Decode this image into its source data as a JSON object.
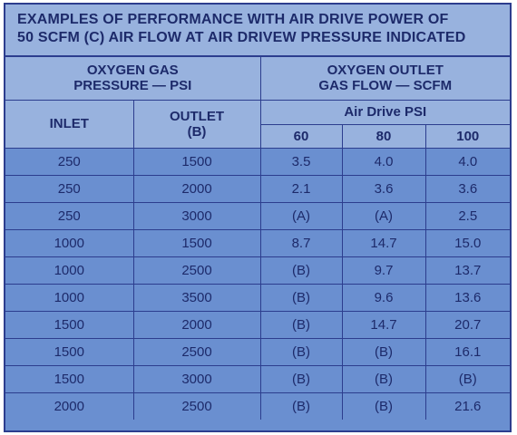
{
  "title": {
    "line1": "EXAMPLES OF PERFORMANCE WITH AIR DRIVE POWER OF",
    "line2": "50 SCFM (C) AIR FLOW AT AIR DRIVEW PRESSURE INDICATED"
  },
  "headers": {
    "pressure_group_line1": "OXYGEN GAS",
    "pressure_group_line2": "PRESSURE — PSI",
    "flow_group_line1": "OXYGEN OUTLET",
    "flow_group_line2": "GAS FLOW — SCFM",
    "inlet": "INLET",
    "outlet_line1": "OUTLET",
    "outlet_line2": "(B)",
    "air_drive": "Air Drive PSI",
    "psi_60": "60",
    "psi_80": "80",
    "psi_100": "100"
  },
  "rows": [
    [
      "250",
      "1500",
      "3.5",
      "4.0",
      "4.0"
    ],
    [
      "250",
      "2000",
      "2.1",
      "3.6",
      "3.6"
    ],
    [
      "250",
      "3000",
      "(A)",
      "(A)",
      "2.5"
    ],
    [
      "1000",
      "1500",
      "8.7",
      "14.7",
      "15.0"
    ],
    [
      "1000",
      "2500",
      "(B)",
      "9.7",
      "13.7"
    ],
    [
      "1000",
      "3500",
      "(B)",
      "9.6",
      "13.6"
    ],
    [
      "1500",
      "2000",
      "(B)",
      "14.7",
      "20.7"
    ],
    [
      "1500",
      "2500",
      "(B)",
      "(B)",
      "16.1"
    ],
    [
      "1500",
      "3000",
      "(B)",
      "(B)",
      "(B)"
    ],
    [
      "2000",
      "2500",
      "(B)",
      "(B)",
      "21.6"
    ]
  ],
  "colors": {
    "header_bg": "#98b2de",
    "cell_bg": "#6a8fd0",
    "border": "#2c3d8e",
    "text": "#1d2a6a"
  }
}
